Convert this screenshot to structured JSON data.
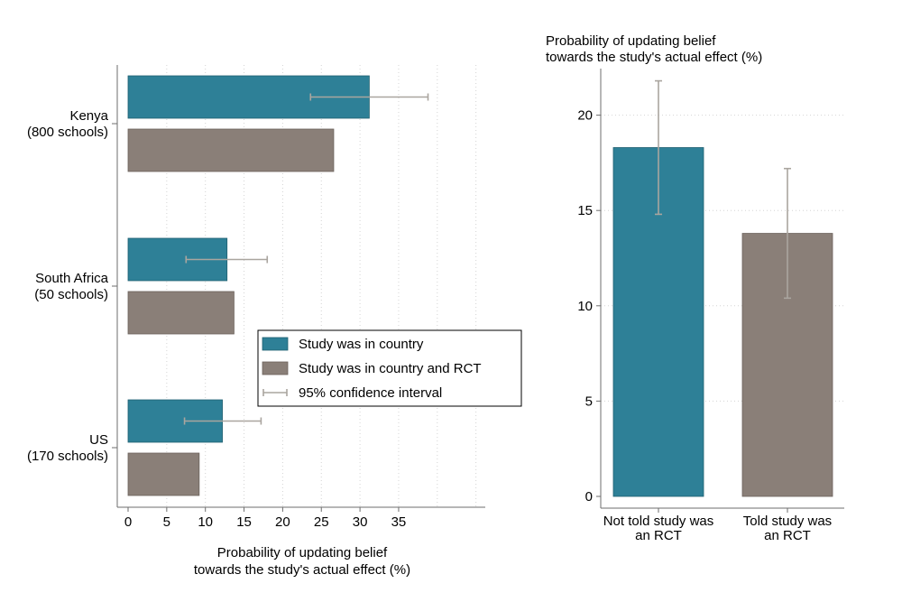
{
  "colors": {
    "teal": "#2e8097",
    "taupe": "#8a7f78",
    "ci": "#aaa59f",
    "axis": "#6e6e6e",
    "grid": "#d4d4d4"
  },
  "chart_data": [
    {
      "type": "bar",
      "orientation": "horizontal",
      "xlabel_line1": "Probability of updating belief",
      "xlabel_line2": "towards the study's actual effect (%)",
      "xlim": [
        0,
        45
      ],
      "xticks": [
        0,
        5,
        10,
        15,
        20,
        25,
        30,
        35
      ],
      "grid": true,
      "categories": [
        {
          "name": "Kenya",
          "sub": "(800 schools)"
        },
        {
          "name": "South Africa",
          "sub": "(50 schools)"
        },
        {
          "name": "US",
          "sub": "(170 schools)"
        }
      ],
      "series": [
        {
          "name": "Study was in country",
          "values": [
            31.2,
            12.8,
            12.2
          ],
          "ci_low": [
            23.6,
            7.5,
            7.3
          ],
          "ci_high": [
            38.8,
            18.0,
            17.2
          ]
        },
        {
          "name": "Study was in country and RCT",
          "values": [
            26.6,
            13.7,
            9.2
          ]
        }
      ],
      "legend": [
        "Study was in country",
        "Study was in country and RCT",
        "95% confidence interval"
      ],
      "legend_position": "bottom-right"
    },
    {
      "type": "bar",
      "orientation": "vertical",
      "ylabel_line1": "Probability of updating belief",
      "ylabel_line2": "towards the study's actual effect (%)",
      "ylim": [
        0,
        22.5
      ],
      "yticks": [
        0,
        5,
        10,
        15,
        20
      ],
      "grid": true,
      "categories": [
        {
          "line1": "Not told study was",
          "line2": "an RCT"
        },
        {
          "line1": "Told study was",
          "line2": "an RCT"
        }
      ],
      "values": [
        18.3,
        13.8
      ],
      "ci_low": [
        14.8,
        10.4
      ],
      "ci_high": [
        21.8,
        17.2
      ]
    }
  ]
}
